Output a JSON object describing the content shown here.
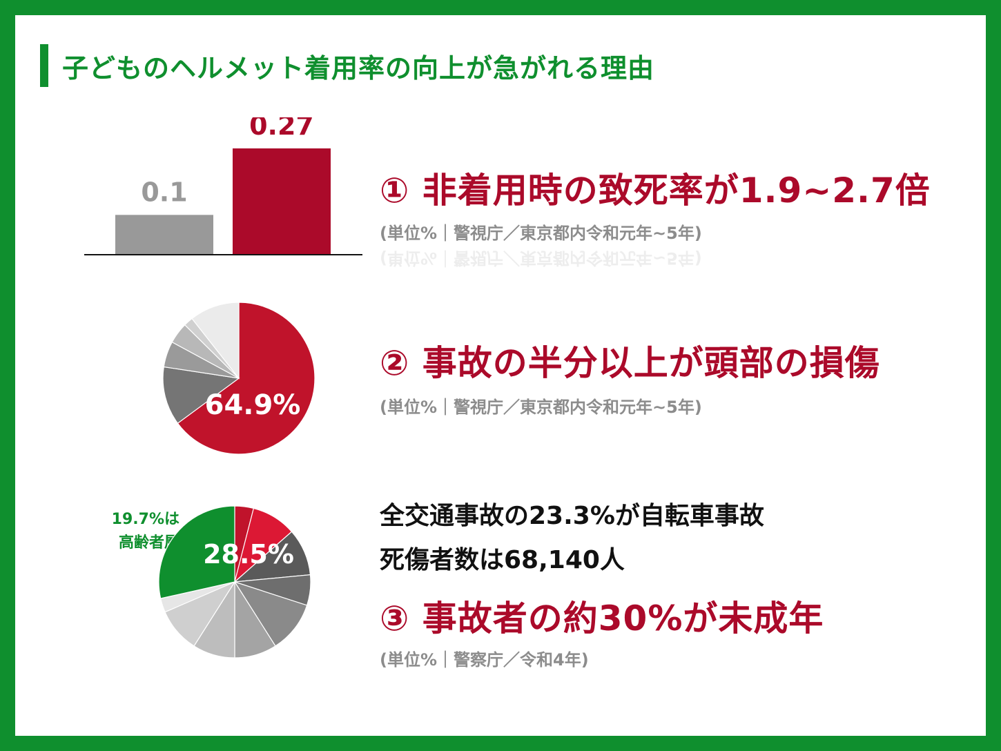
{
  "title": "子どものヘルメット着用率の向上が急がれる理由",
  "colors": {
    "green": "#0f8f2e",
    "crimson": "#ab0a2a",
    "red": "#c0132b",
    "bright_red": "#dc1834",
    "gray_bar": "#999999",
    "source_gray": "#8c8c8c"
  },
  "section1": {
    "heading": "① 非着用時の致死率が1.9~2.7倍",
    "source": "(単位%｜警視庁／東京都内令和元年~5年)"
  },
  "section2": {
    "heading": "② 事故の半分以上が頭部の損傷",
    "source": "(単位%｜警視庁／東京都内令和元年~5年)"
  },
  "section3": {
    "line1": "全交通事故の23.3%が自転車事故",
    "line2": "死傷者数は68,140人",
    "heading": "③ 事故者の約30%が未成年",
    "source": "(単位%｜警察庁／令和4年)",
    "elderly_note_line1": "19.7%は",
    "elderly_note_line2": "高齢者層"
  },
  "chart_data": [
    {
      "type": "bar",
      "categories": [
        "",
        ""
      ],
      "values": [
        0.1,
        0.27
      ],
      "data_labels": [
        "0.1",
        "0.27"
      ],
      "colors": [
        "#999999",
        "#ab0a2a"
      ],
      "ylim": [
        0,
        0.3
      ]
    },
    {
      "type": "pie",
      "slices": [
        {
          "value": 64.9,
          "label": "64.9%",
          "color": "#c0132b"
        },
        {
          "value": 12.5,
          "label": "",
          "color": "#757575"
        },
        {
          "value": 5.5,
          "label": "",
          "color": "#9a9a9a"
        },
        {
          "value": 4.5,
          "label": "",
          "color": "#b8b8b8"
        },
        {
          "value": 2.0,
          "label": "",
          "color": "#d0d0d0"
        },
        {
          "value": 10.6,
          "label": "",
          "color": "#ebebeb"
        }
      ]
    },
    {
      "type": "pie",
      "slices": [
        {
          "value": 4.0,
          "label": "",
          "color": "#c0132b"
        },
        {
          "value": 9.5,
          "label": "",
          "color": "#dc1834"
        },
        {
          "value": 10.0,
          "label": "",
          "color": "#5a5a5a"
        },
        {
          "value": 6.5,
          "label": "",
          "color": "#6e6e6e"
        },
        {
          "value": 11.0,
          "label": "",
          "color": "#8a8a8a"
        },
        {
          "value": 9.0,
          "label": "",
          "color": "#a4a4a4"
        },
        {
          "value": 9.0,
          "label": "",
          "color": "#bdbdbd"
        },
        {
          "value": 9.5,
          "label": "",
          "color": "#cfcfcf"
        },
        {
          "value": 3.0,
          "label": "",
          "color": "#e6e6e6"
        },
        {
          "value": 28.5,
          "label": "28.5%",
          "color": "#0f8f2e"
        }
      ]
    }
  ]
}
